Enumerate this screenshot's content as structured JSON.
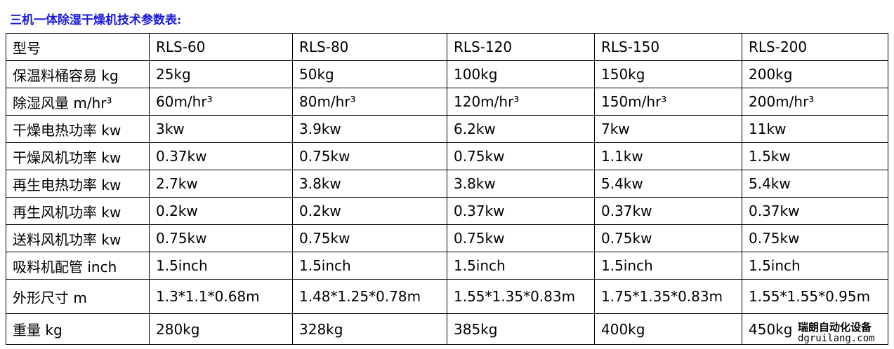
{
  "title": "三机一体除湿干燥机技术参数表:",
  "table": {
    "header": [
      "型号",
      "RLS-60",
      "RLS-80",
      "RLS-120",
      "RLS-150",
      "RLS-200"
    ],
    "rows": [
      [
        "保温料桶容易 kg",
        "25kg",
        "50kg",
        "100kg",
        "150kg",
        "200kg"
      ],
      [
        "除湿风量 m/hr³",
        "60m/hr³",
        "80m/hr³",
        "120m/hr³",
        "150m/hr³",
        "200m/hr³"
      ],
      [
        "干燥电热功率 kw",
        "3kw",
        "3.9kw",
        "6.2kw",
        "7kw",
        "11kw"
      ],
      [
        "干燥风机功率 kw",
        "0.37kw",
        "0.75kw",
        "0.75kw",
        "1.1kw",
        "1.5kw"
      ],
      [
        "再生电热功率 kw",
        "2.7kw",
        "3.8kw",
        "3.8kw",
        "5.4kw",
        "5.4kw"
      ],
      [
        "再生风机功率 kw",
        "0.2kw",
        "0.2kw",
        "0.37kw",
        "0.37kw",
        "0.37kw"
      ],
      [
        "送料风机功率 kw",
        "0.75kw",
        "0.75kw",
        "0.75kw",
        "0.75kw",
        "0.75kw"
      ],
      [
        "吸料机配管 inch",
        "1.5inch",
        "1.5inch",
        "1.5inch",
        "1.5inch",
        "1.5inch"
      ],
      [
        "外形尺寸 m",
        "1.3*1.1*0.68m",
        "1.48*1.25*0.78m",
        "1.55*1.35*0.83m",
        "1.75*1.35*0.83m",
        "1.55*1.55*0.95m"
      ],
      [
        "重量 kg",
        "280kg",
        "328kg",
        "385kg",
        "400kg",
        "450kg"
      ]
    ]
  },
  "watermark": {
    "name": "瑞朗自动化设备",
    "url": "dgruilang.com"
  }
}
